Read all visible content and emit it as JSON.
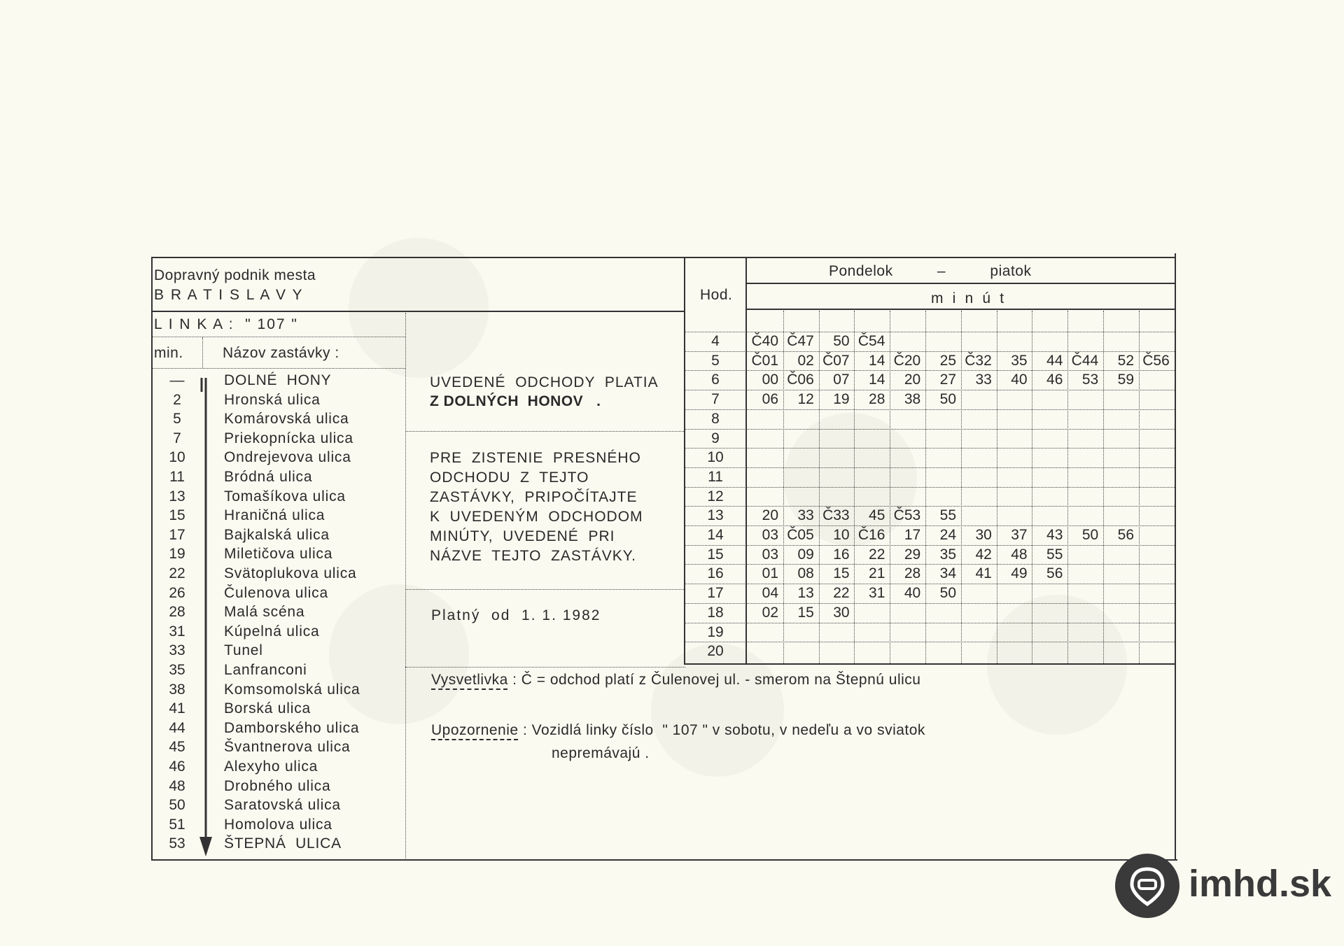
{
  "header": {
    "company": "Dopravný podnik mesta",
    "city": "B R A T I S L A V Y",
    "line": "L I N K A :  \" 107 \"",
    "min_label": "min.",
    "stop_label": "Názov zastávky :"
  },
  "stops": [
    {
      "min": "—",
      "name": "DOLNÉ  HONY"
    },
    {
      "min": "2",
      "name": "Hronská ulica"
    },
    {
      "min": "5",
      "name": "Komárovská ulica"
    },
    {
      "min": "7",
      "name": "Priekopnícka ulica"
    },
    {
      "min": "10",
      "name": "Ondrejevova ulica"
    },
    {
      "min": "11",
      "name": "Bródná ulica"
    },
    {
      "min": "13",
      "name": "Tomašíkova ulica"
    },
    {
      "min": "15",
      "name": "Hraničná ulica"
    },
    {
      "min": "17",
      "name": "Bajkalská ulica"
    },
    {
      "min": "19",
      "name": "Miletičova ulica"
    },
    {
      "min": "22",
      "name": "Svätoplukova ulica"
    },
    {
      "min": "26",
      "name": "Čulenova ulica"
    },
    {
      "min": "28",
      "name": "Malá scéna"
    },
    {
      "min": "31",
      "name": "Kúpelná ulica"
    },
    {
      "min": "33",
      "name": "Tunel"
    },
    {
      "min": "35",
      "name": "Lanfranconi"
    },
    {
      "min": "38",
      "name": "Komsomolská ulica"
    },
    {
      "min": "41",
      "name": "Borská ulica"
    },
    {
      "min": "44",
      "name": "Damborského ulica"
    },
    {
      "min": "45",
      "name": "Švantnerova ulica"
    },
    {
      "min": "46",
      "name": "Alexyho ulica"
    },
    {
      "min": "48",
      "name": "Drobného ulica"
    },
    {
      "min": "50",
      "name": "Saratovská ulica"
    },
    {
      "min": "51",
      "name": "Homolova ulica"
    },
    {
      "min": "53",
      "name": "ŠTEPNÁ  ULICA"
    }
  ],
  "notes": {
    "valid_from_line1": "UVEDENÉ  ODCHODY  PLATIA",
    "valid_from_line2": "Z DOLNÝCH  HONOV   .",
    "instruction_lines": [
      "PRE  ZISTENIE  PRESNÉHO",
      "ODCHODU  Z  TEJTO",
      "ZASTÁVKY,  PRIPOČÍTAJTE",
      "K  UVEDENÝM  ODCHODOM",
      "MINÚTY,  UVEDENÉ  PRI",
      "NÁZVE  TEJTO  ZASTÁVKY."
    ],
    "validity": "Platný  od  1. 1. 1982"
  },
  "timetable": {
    "hour_label": "Hod.",
    "days": "Pondelok          –          piatok",
    "minutes_label": "m  i  n  ú  t",
    "rows": [
      {
        "hour": "4",
        "minutes": [
          "Č40",
          "Č47",
          "50",
          "Č54"
        ]
      },
      {
        "hour": "5",
        "minutes": [
          "Č01",
          "02",
          "Č07",
          "14",
          "Č20",
          "25",
          "Č32",
          "35",
          "44",
          "Č44",
          "52",
          "Č56"
        ]
      },
      {
        "hour": "6",
        "minutes": [
          "00",
          "Č06",
          "07",
          "14",
          "20",
          "27",
          "33",
          "40",
          "46",
          "53",
          "59"
        ]
      },
      {
        "hour": "7",
        "minutes": [
          "06",
          "12",
          "19",
          "28",
          "38",
          "50"
        ]
      },
      {
        "hour": "8",
        "minutes": []
      },
      {
        "hour": "9",
        "minutes": []
      },
      {
        "hour": "10",
        "minutes": []
      },
      {
        "hour": "11",
        "minutes": []
      },
      {
        "hour": "12",
        "minutes": []
      },
      {
        "hour": "13",
        "minutes": [
          "20",
          "33",
          "Č33",
          "45",
          "Č53",
          "55"
        ]
      },
      {
        "hour": "14",
        "minutes": [
          "03",
          "Č05",
          "10",
          "Č16",
          "17",
          "24",
          "30",
          "37",
          "43",
          "50",
          "56"
        ]
      },
      {
        "hour": "15",
        "minutes": [
          "03",
          "09",
          "16",
          "22",
          "29",
          "35",
          "42",
          "48",
          "55"
        ]
      },
      {
        "hour": "16",
        "minutes": [
          "01",
          "08",
          "15",
          "21",
          "28",
          "34",
          "41",
          "49",
          "56"
        ]
      },
      {
        "hour": "17",
        "minutes": [
          "04",
          "13",
          "22",
          "31",
          "40",
          "50"
        ]
      },
      {
        "hour": "18",
        "minutes": [
          "02",
          "15",
          "30"
        ]
      },
      {
        "hour": "19",
        "minutes": []
      },
      {
        "hour": "20",
        "minutes": []
      }
    ]
  },
  "footer": {
    "legend_label": "Vysvetlivka",
    "legend_text": ": Č = odchod platí z Čulenovej ul. - smerom na Štepnú ulicu",
    "warning_label": "Upozornenie",
    "warning_text": ": Vozidlá linky číslo  \" 107 \" v sobotu, v nedeľu a vo sviatok",
    "warning_text2": "nepremávajú ."
  },
  "logo": {
    "text": "imhd.sk",
    "color": "#3a3a3a"
  }
}
